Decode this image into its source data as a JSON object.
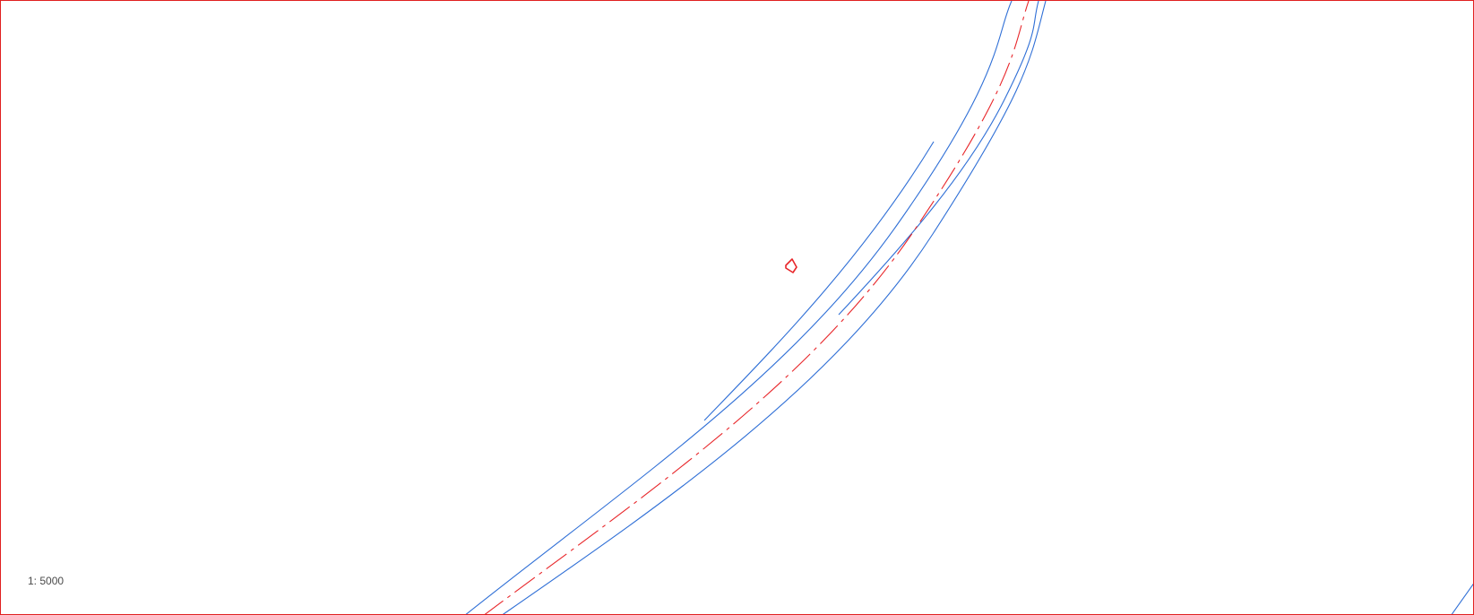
{
  "viewport": {
    "frame_color": "#e02020",
    "background": "#ffffff"
  },
  "map": {
    "scale_label": "1: 5000",
    "road_edge_color": "#2f6fd6",
    "centerline_color": "#e8262a",
    "centerline_style": "dash-dot",
    "marker_icon": "location-marker-icon"
  }
}
